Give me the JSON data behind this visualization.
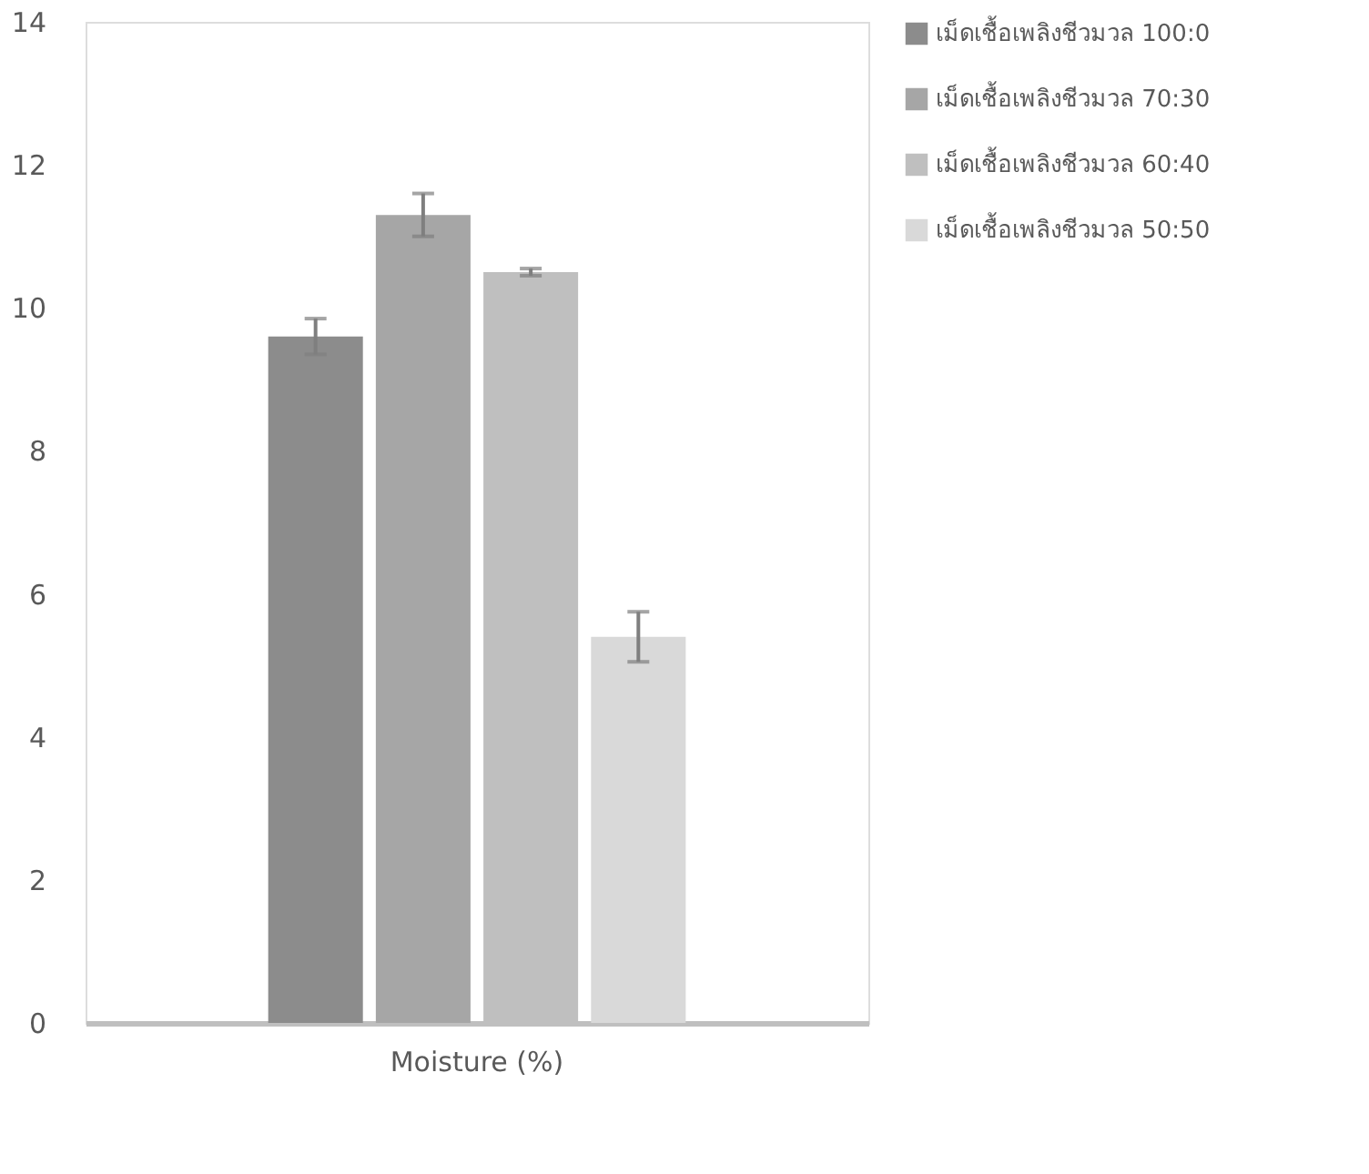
{
  "chart_data": {
    "type": "bar",
    "categories": [
      "Moisture (%)"
    ],
    "series": [
      {
        "name": "เม็ดเชื้อเพลิงชีวมวล 100:0",
        "color": "#8c8c8c",
        "values": [
          9.6
        ],
        "errors": [
          0.25
        ]
      },
      {
        "name": "เม็ดเชื้อเพลิงชีวมวล 70:30",
        "color": "#a6a6a6",
        "values": [
          11.3
        ],
        "errors": [
          0.3
        ]
      },
      {
        "name": "เม็ดเชื้อเพลิงชีวมวล 60:40",
        "color": "#bfbfbf",
        "values": [
          10.5
        ],
        "errors": [
          0.05
        ]
      },
      {
        "name": "เม็ดเชื้อเพลิงชีวมวล 50:50",
        "color": "#d9d9d9",
        "values": [
          5.4
        ],
        "errors": [
          0.35
        ]
      }
    ],
    "ylim": [
      0,
      14
    ],
    "yticks": [
      0,
      2,
      4,
      6,
      8,
      10,
      12,
      14
    ],
    "grid": false,
    "legend": "right"
  }
}
